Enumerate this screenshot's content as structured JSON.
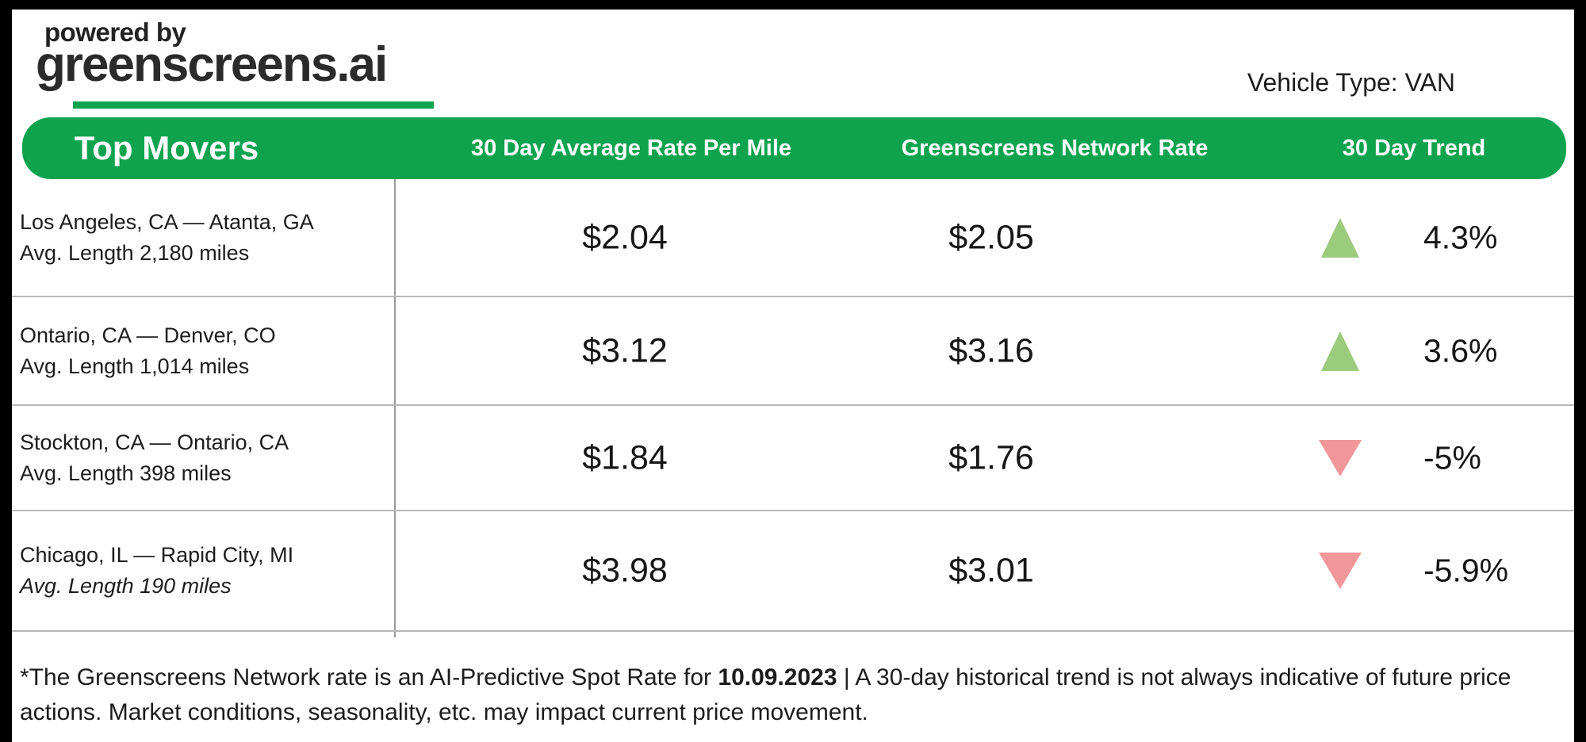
{
  "branding": {
    "powered_by": "powered by",
    "logo": "greenscreens.ai"
  },
  "vehicle_type": "Vehicle Type: VAN",
  "chart_data": {
    "type": "table",
    "columns": [
      "Top Movers",
      "30 Day Average Rate Per Mile",
      "Greenscreens Network Rate",
      "30 Day Trend"
    ],
    "rows": [
      {
        "route": "Los Angeles, CA — Atanta, GA",
        "avg_length": "Avg. Length 2,180 miles",
        "length_italic": false,
        "avg_rate_per_mile": "$2.04",
        "network_rate": "$2.05",
        "trend": "up",
        "trend_pct": "4.3%"
      },
      {
        "route": "Ontario, CA — Denver, CO",
        "avg_length": "Avg. Length 1,014 miles",
        "length_italic": false,
        "avg_rate_per_mile": "$3.12",
        "network_rate": "$3.16",
        "trend": "up",
        "trend_pct": "3.6%"
      },
      {
        "route": "Stockton, CA — Ontario, CA",
        "avg_length": "Avg. Length 398 miles",
        "length_italic": false,
        "avg_rate_per_mile": "$1.84",
        "network_rate": "$1.76",
        "trend": "down",
        "trend_pct": "-5%"
      },
      {
        "route": "Chicago, IL — Rapid City, MI",
        "avg_length": "Avg. Length 190 miles",
        "length_italic": true,
        "avg_rate_per_mile": "$3.98",
        "network_rate": "$3.01",
        "trend": "down",
        "trend_pct": "-5.9%"
      }
    ]
  },
  "footnote": {
    "pre": "*The Greenscreens Network rate is an AI-Predictive Spot Rate for ",
    "date": "10.09.2023",
    "post": " | A 30-day historical trend is not always indicative of future price actions. Market conditions, seasonality, etc. may impact current price movement."
  },
  "colors": {
    "brand_green": "#0FA34E",
    "trend_up": "#9BCB7D",
    "trend_down": "#F19799"
  }
}
